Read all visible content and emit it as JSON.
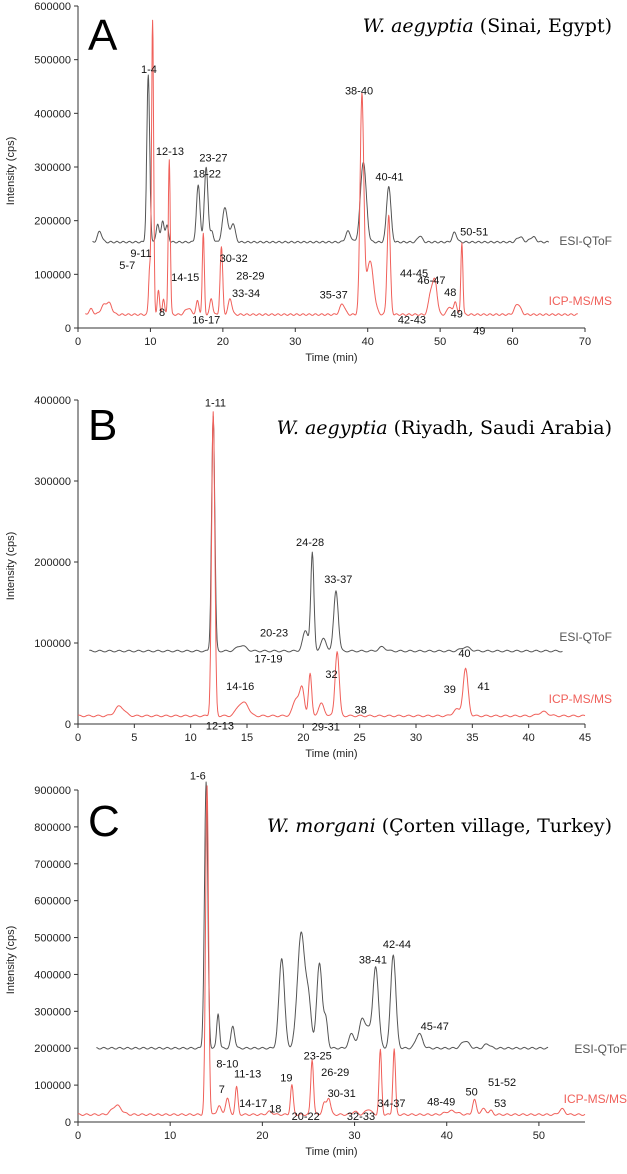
{
  "colors": {
    "esi": "#555555",
    "icp": "#f0605a",
    "axis": "#333333"
  },
  "chart_data": [
    {
      "type": "line",
      "panel": "A",
      "title_italic": "W. aegyptia",
      "title_rest": " (Sinai, Egypt)",
      "xlabel": "Time (min)",
      "ylabel": "Intensity (cps)",
      "xlim": [
        0,
        70
      ],
      "ylim": [
        0,
        600000
      ],
      "xticks": [
        0,
        10,
        20,
        30,
        40,
        50,
        60,
        70
      ],
      "yticks": [
        0,
        100000,
        200000,
        300000,
        400000,
        500000,
        600000
      ],
      "series": [
        {
          "name": "ESI-QToF",
          "baseline": 160000,
          "x_start": 2,
          "x_end": 65,
          "peaks": [
            [
              3,
              20000,
              0.3
            ],
            [
              9.7,
              310000,
              0.2
            ],
            [
              11,
              35000,
              0.2
            ],
            [
              11.7,
              40000,
              0.2
            ],
            [
              12.3,
              30000,
              0.2
            ],
            [
              16.6,
              105000,
              0.25
            ],
            [
              17.7,
              140000,
              0.25
            ],
            [
              18.5,
              20000,
              0.2
            ],
            [
              20.3,
              65000,
              0.35
            ],
            [
              21.4,
              35000,
              0.3
            ],
            [
              37.3,
              20000,
              0.35
            ],
            [
              39.4,
              150000,
              0.4
            ],
            [
              42.9,
              105000,
              0.3
            ],
            [
              47.2,
              12000,
              0.3
            ],
            [
              52.0,
              18000,
              0.3
            ],
            [
              61,
              10000,
              0.4
            ],
            [
              62.8,
              10000,
              0.4
            ]
          ]
        },
        {
          "name": "ICP-MS/MS",
          "baseline": 25000,
          "x_start": 1,
          "x_end": 69,
          "peaks": [
            [
              1.8,
              10000,
              0.3
            ],
            [
              3.5,
              15000,
              0.4
            ],
            [
              4.3,
              20000,
              0.4
            ],
            [
              9.9,
              85000,
              0.15
            ],
            [
              10.3,
              545000,
              0.14
            ],
            [
              11.1,
              45000,
              0.15
            ],
            [
              11.8,
              30000,
              0.15
            ],
            [
              12.6,
              290000,
              0.14
            ],
            [
              15.2,
              12000,
              0.4
            ],
            [
              16.5,
              25000,
              0.2
            ],
            [
              17.3,
              150000,
              0.14
            ],
            [
              18.4,
              30000,
              0.2
            ],
            [
              19.8,
              125000,
              0.18
            ],
            [
              21.0,
              30000,
              0.25
            ],
            [
              36.5,
              20000,
              0.35
            ],
            [
              39.2,
              405000,
              0.25
            ],
            [
              40.3,
              100000,
              0.5
            ],
            [
              42.9,
              185000,
              0.22
            ],
            [
              48.7,
              40000,
              0.3
            ],
            [
              49.3,
              60000,
              0.3
            ],
            [
              51.3,
              15000,
              0.3
            ],
            [
              52.1,
              25000,
              0.2
            ],
            [
              53.0,
              135000,
              0.14
            ],
            [
              60.7,
              20000,
              0.4
            ]
          ]
        }
      ],
      "peak_labels": [
        {
          "text": "1-4",
          "x": 9.8,
          "y": 475000
        },
        {
          "text": "12-13",
          "x": 12.7,
          "y": 322000
        },
        {
          "text": "18-22",
          "x": 17.8,
          "y": 280000
        },
        {
          "text": "23-27",
          "x": 18.7,
          "y": 310000
        },
        {
          "text": "9-11",
          "x": 8.7,
          "y": 132000
        },
        {
          "text": "5-7",
          "x": 6.8,
          "y": 110000
        },
        {
          "text": "14-15",
          "x": 14.8,
          "y": 88000
        },
        {
          "text": "30-32",
          "x": 21.5,
          "y": 123000
        },
        {
          "text": "28-29",
          "x": 23.8,
          "y": 90000
        },
        {
          "text": "33-34",
          "x": 23.2,
          "y": 58000
        },
        {
          "text": "8",
          "x": 11.6,
          "y": 22000
        },
        {
          "text": "16-17",
          "x": 17.7,
          "y": 8000
        },
        {
          "text": "38-40",
          "x": 38.8,
          "y": 435000
        },
        {
          "text": "40-41",
          "x": 43.0,
          "y": 275000
        },
        {
          "text": "35-37",
          "x": 35.3,
          "y": 55000
        },
        {
          "text": "50-51",
          "x": 54.7,
          "y": 172000
        },
        {
          "text": "46-47",
          "x": 48.8,
          "y": 82000
        },
        {
          "text": "44-45",
          "x": 46.4,
          "y": 95000
        },
        {
          "text": "48",
          "x": 51.4,
          "y": 60000
        },
        {
          "text": "42-43",
          "x": 46.1,
          "y": 8000
        },
        {
          "text": "49",
          "x": 52.3,
          "y": 20000
        },
        {
          "text": "49",
          "x": 55.4,
          "y": -12000
        }
      ]
    },
    {
      "type": "line",
      "panel": "B",
      "title_italic": "W. aegyptia",
      "title_rest": " (Riyadh, Saudi Arabia)",
      "xlabel": "Time (min)",
      "ylabel": "Intensity (cps)",
      "xlim": [
        0,
        45
      ],
      "ylim": [
        0,
        400000
      ],
      "xticks": [
        0,
        5,
        10,
        15,
        20,
        25,
        30,
        35,
        40,
        45
      ],
      "yticks": [
        0,
        100000,
        200000,
        300000,
        400000
      ],
      "series": [
        {
          "name": "ESI-QToF",
          "baseline": 90000,
          "x_start": 1,
          "x_end": 43,
          "peaks": [
            [
              12.0,
              290000,
              0.14
            ],
            [
              14.5,
              7000,
              0.4
            ],
            [
              20.2,
              25000,
              0.25
            ],
            [
              20.8,
              120000,
              0.14
            ],
            [
              21.8,
              15000,
              0.25
            ],
            [
              22.9,
              75000,
              0.2
            ],
            [
              27.0,
              5000,
              0.3
            ],
            [
              34.4,
              5000,
              0.4
            ]
          ]
        },
        {
          "name": "ICP-MS/MS",
          "baseline": 10000,
          "x_start": 0,
          "x_end": 45,
          "peaks": [
            [
              3.7,
              12000,
              0.4
            ],
            [
              12.0,
              375000,
              0.14
            ],
            [
              14.3,
              12000,
              0.3
            ],
            [
              14.9,
              14000,
              0.3
            ],
            [
              19.4,
              22000,
              0.3
            ],
            [
              19.9,
              30000,
              0.2
            ],
            [
              20.6,
              52000,
              0.14
            ],
            [
              21.6,
              15000,
              0.25
            ],
            [
              23.0,
              80000,
              0.18
            ],
            [
              33.6,
              8000,
              0.3
            ],
            [
              34.4,
              58000,
              0.22
            ],
            [
              41.3,
              5000,
              0.4
            ]
          ]
        }
      ],
      "peak_labels": [
        {
          "text": "1-11",
          "x": 12.2,
          "y": 392000
        },
        {
          "text": "24-28",
          "x": 20.6,
          "y": 220000
        },
        {
          "text": "33-37",
          "x": 23.1,
          "y": 174000
        },
        {
          "text": "20-23",
          "x": 17.4,
          "y": 108000
        },
        {
          "text": "17-19",
          "x": 16.9,
          "y": 76000
        },
        {
          "text": "32",
          "x": 22.5,
          "y": 57000
        },
        {
          "text": "14-16",
          "x": 14.4,
          "y": 42000
        },
        {
          "text": "12-13",
          "x": 12.6,
          "y": -7000
        },
        {
          "text": "29-31",
          "x": 22.0,
          "y": -8000
        },
        {
          "text": "38",
          "x": 25.1,
          "y": 13000
        },
        {
          "text": "40",
          "x": 34.3,
          "y": 83000
        },
        {
          "text": "39",
          "x": 33.0,
          "y": 38000
        },
        {
          "text": "41",
          "x": 36.0,
          "y": 42000
        }
      ]
    },
    {
      "type": "line",
      "panel": "C",
      "title_italic": "W. morgani",
      "title_rest": " (Çorten village, Turkey)",
      "xlabel": "Time (min)",
      "ylabel": "Intensity (cps)",
      "xlim": [
        0,
        55
      ],
      "ylim": [
        0,
        900000
      ],
      "xticks": [
        0,
        10,
        20,
        30,
        40,
        50
      ],
      "yticks": [
        0,
        100000,
        200000,
        300000,
        400000,
        500000,
        600000,
        700000,
        800000,
        900000
      ],
      "series": [
        {
          "name": "ESI-QToF",
          "baseline": 200000,
          "x_start": 2,
          "x_end": 51,
          "peaks": [
            [
              13.9,
              720000,
              0.18
            ],
            [
              15.2,
              95000,
              0.15
            ],
            [
              16.8,
              60000,
              0.2
            ],
            [
              22.1,
              245000,
              0.3
            ],
            [
              24.2,
              310000,
              0.4
            ],
            [
              25.0,
              120000,
              0.3
            ],
            [
              26.2,
              230000,
              0.3
            ],
            [
              26.9,
              70000,
              0.2
            ],
            [
              29.7,
              40000,
              0.3
            ],
            [
              30.8,
              80000,
              0.3
            ],
            [
              31.5,
              50000,
              0.3
            ],
            [
              32.3,
              220000,
              0.3
            ],
            [
              34.2,
              255000,
              0.28
            ],
            [
              37.0,
              40000,
              0.35
            ],
            [
              42.0,
              20000,
              0.4
            ],
            [
              44.4,
              12000,
              0.3
            ]
          ]
        },
        {
          "name": "ICP-MS/MS",
          "baseline": 20000,
          "x_start": 0,
          "x_end": 55,
          "peaks": [
            [
              4.2,
              25000,
              0.5
            ],
            [
              14.0,
              890000,
              0.16
            ],
            [
              15.3,
              25000,
              0.2
            ],
            [
              16.2,
              45000,
              0.2
            ],
            [
              17.2,
              75000,
              0.15
            ],
            [
              20.8,
              8000,
              0.3
            ],
            [
              23.2,
              80000,
              0.15
            ],
            [
              25.4,
              150000,
              0.15
            ],
            [
              26.7,
              30000,
              0.2
            ],
            [
              27.2,
              45000,
              0.2
            ],
            [
              30.0,
              8000,
              0.3
            ],
            [
              31.5,
              15000,
              0.3
            ],
            [
              32.8,
              175000,
              0.14
            ],
            [
              34.3,
              178000,
              0.14
            ],
            [
              40.5,
              10000,
              0.6
            ],
            [
              43.0,
              40000,
              0.2
            ],
            [
              44.0,
              15000,
              0.3
            ],
            [
              44.8,
              10000,
              0.2
            ],
            [
              52.5,
              15000,
              0.3
            ]
          ]
        }
      ],
      "peak_labels": [
        {
          "text": "1-6",
          "x": 13.0,
          "y": 928000
        },
        {
          "text": "42-44",
          "x": 34.6,
          "y": 472000
        },
        {
          "text": "38-41",
          "x": 32.0,
          "y": 430000
        },
        {
          "text": "45-47",
          "x": 38.7,
          "y": 250000
        },
        {
          "text": "8-10",
          "x": 16.2,
          "y": 148000
        },
        {
          "text": "11-13",
          "x": 18.4,
          "y": 120000
        },
        {
          "text": "7",
          "x": 15.6,
          "y": 78000
        },
        {
          "text": "14-17",
          "x": 19.0,
          "y": 40000
        },
        {
          "text": "18",
          "x": 21.4,
          "y": 26000
        },
        {
          "text": "19",
          "x": 22.6,
          "y": 110000
        },
        {
          "text": "23-25",
          "x": 26.0,
          "y": 170000
        },
        {
          "text": "26-29",
          "x": 27.9,
          "y": 125000
        },
        {
          "text": "20-22",
          "x": 24.7,
          "y": 5000
        },
        {
          "text": "30-31",
          "x": 28.6,
          "y": 68000
        },
        {
          "text": "32-33",
          "x": 30.7,
          "y": 5000
        },
        {
          "text": "34-37",
          "x": 34.0,
          "y": 40000
        },
        {
          "text": "48-49",
          "x": 39.4,
          "y": 45000
        },
        {
          "text": "50",
          "x": 42.7,
          "y": 72000
        },
        {
          "text": "51-52",
          "x": 46.0,
          "y": 98000
        },
        {
          "text": "53",
          "x": 45.8,
          "y": 40000
        }
      ]
    }
  ]
}
